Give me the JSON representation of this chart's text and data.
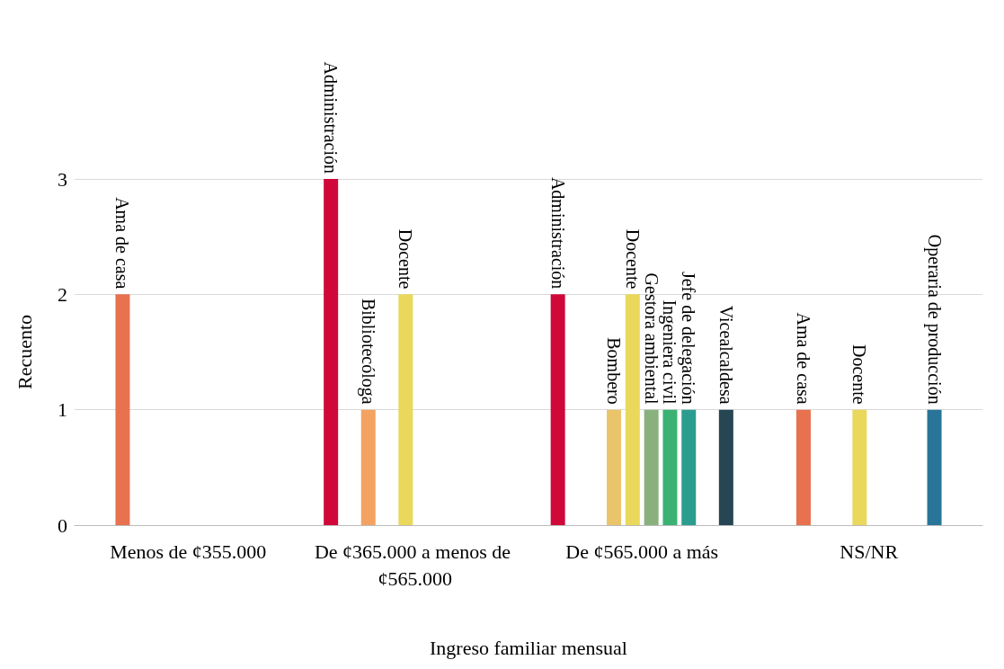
{
  "chart_data": {
    "type": "bar",
    "xlabel": "Ingreso familiar mensual",
    "ylabel": "Recuento",
    "categories": [
      "Menos de ¢355.000",
      "De ¢365.000 a menos de ¢565.000",
      "De ¢565.000 a más",
      "NS/NR"
    ],
    "series": [
      {
        "name": "Administración",
        "color": "#d0083a",
        "values": [
          null,
          3,
          2,
          null
        ]
      },
      {
        "name": "Ama de casa",
        "color": "#e8714f",
        "values": [
          2,
          null,
          null,
          1
        ]
      },
      {
        "name": "Bibliotecóloga",
        "color": "#f4a261",
        "values": [
          null,
          1,
          null,
          null
        ]
      },
      {
        "name": "Bombero",
        "color": "#e9c46a",
        "values": [
          null,
          null,
          1,
          null
        ]
      },
      {
        "name": "Docente",
        "color": "#e9d85c",
        "values": [
          null,
          2,
          2,
          1
        ]
      },
      {
        "name": "Gestora ambiental",
        "color": "#8ab17d",
        "values": [
          null,
          null,
          1,
          null
        ]
      },
      {
        "name": "Ingeniera civil",
        "color": "#3bb273",
        "values": [
          null,
          null,
          1,
          null
        ]
      },
      {
        "name": "Jefe de delegación",
        "color": "#2a9d8f",
        "values": [
          null,
          null,
          1,
          null
        ]
      },
      {
        "name": "Operaria de producción",
        "color": "#287599",
        "values": [
          null,
          null,
          null,
          1
        ]
      },
      {
        "name": "Vicealcaldesa",
        "color": "#264653",
        "values": [
          null,
          null,
          1,
          null
        ]
      }
    ],
    "ylim": [
      0,
      3
    ],
    "yticks": [
      0,
      1,
      2,
      3
    ],
    "grid": "y",
    "legend": false
  }
}
